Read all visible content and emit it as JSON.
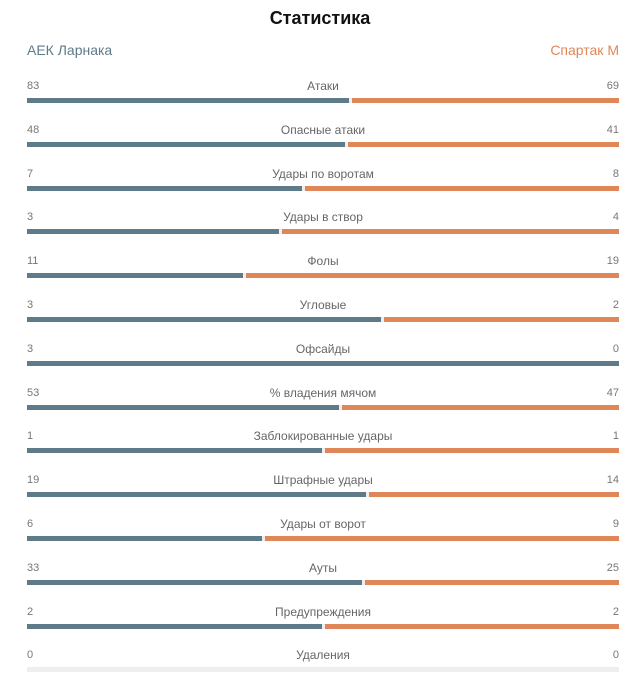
{
  "title": "Статистика",
  "teams": {
    "home": "АЕК Ларнака",
    "away": "Спартак М"
  },
  "colors": {
    "home": "#5f7a89",
    "away": "#e0875a",
    "empty": "#eeeeee"
  },
  "stats": [
    {
      "label": "Атаки",
      "home": "83",
      "away": "69"
    },
    {
      "label": "Опасные атаки",
      "home": "48",
      "away": "41"
    },
    {
      "label": "Удары по воротам",
      "home": "7",
      "away": "8"
    },
    {
      "label": "Удары в створ",
      "home": "3",
      "away": "4"
    },
    {
      "label": "Фолы",
      "home": "11",
      "away": "19"
    },
    {
      "label": "Угловые",
      "home": "3",
      "away": "2"
    },
    {
      "label": "Офсайды",
      "home": "3",
      "away": "0"
    },
    {
      "label": "% владения мячом",
      "home": "53",
      "away": "47"
    },
    {
      "label": "Заблокированные удары",
      "home": "1",
      "away": "1"
    },
    {
      "label": "Штрафные удары",
      "home": "19",
      "away": "14"
    },
    {
      "label": "Удары от ворот",
      "home": "6",
      "away": "9"
    },
    {
      "label": "Ауты",
      "home": "33",
      "away": "25"
    },
    {
      "label": "Предупреждения",
      "home": "2",
      "away": "2"
    },
    {
      "label": "Удаления",
      "home": "0",
      "away": "0"
    }
  ]
}
